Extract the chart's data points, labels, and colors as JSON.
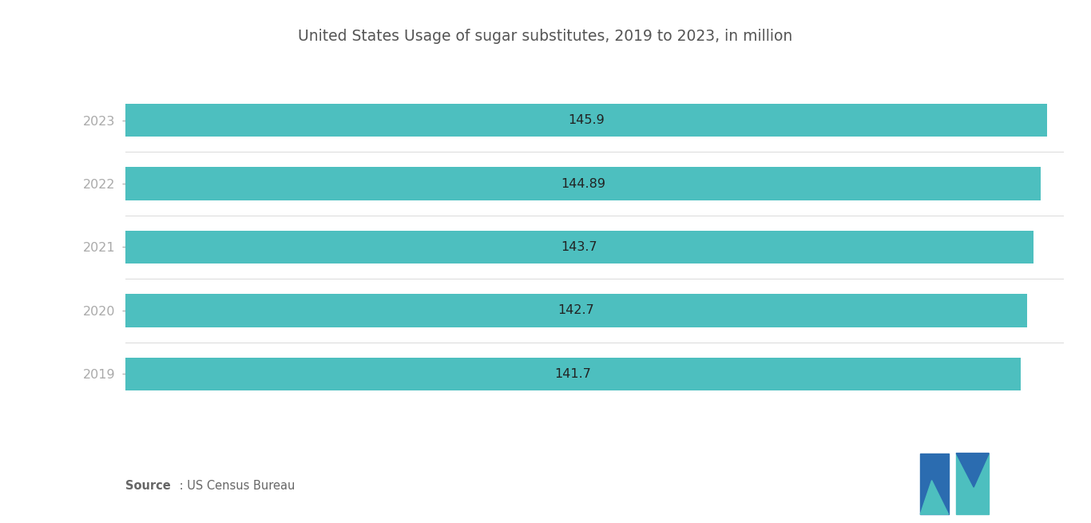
{
  "title": "United States Usage of sugar substitutes, 2019 to 2023, in million",
  "years": [
    "2023",
    "2022",
    "2021",
    "2020",
    "2019"
  ],
  "values": [
    145.9,
    144.89,
    143.7,
    142.7,
    141.7
  ],
  "bar_color": "#4DBFBF",
  "bar_label_color": "#222222",
  "background_color": "#ffffff",
  "title_color": "#555555",
  "title_fontsize": 13.5,
  "label_fontsize": 11.5,
  "value_fontsize": 11.5,
  "xlim_max": 148.5,
  "bar_height": 0.52,
  "logo_blue": "#2B6CB0",
  "logo_teal": "#4DBFBF"
}
